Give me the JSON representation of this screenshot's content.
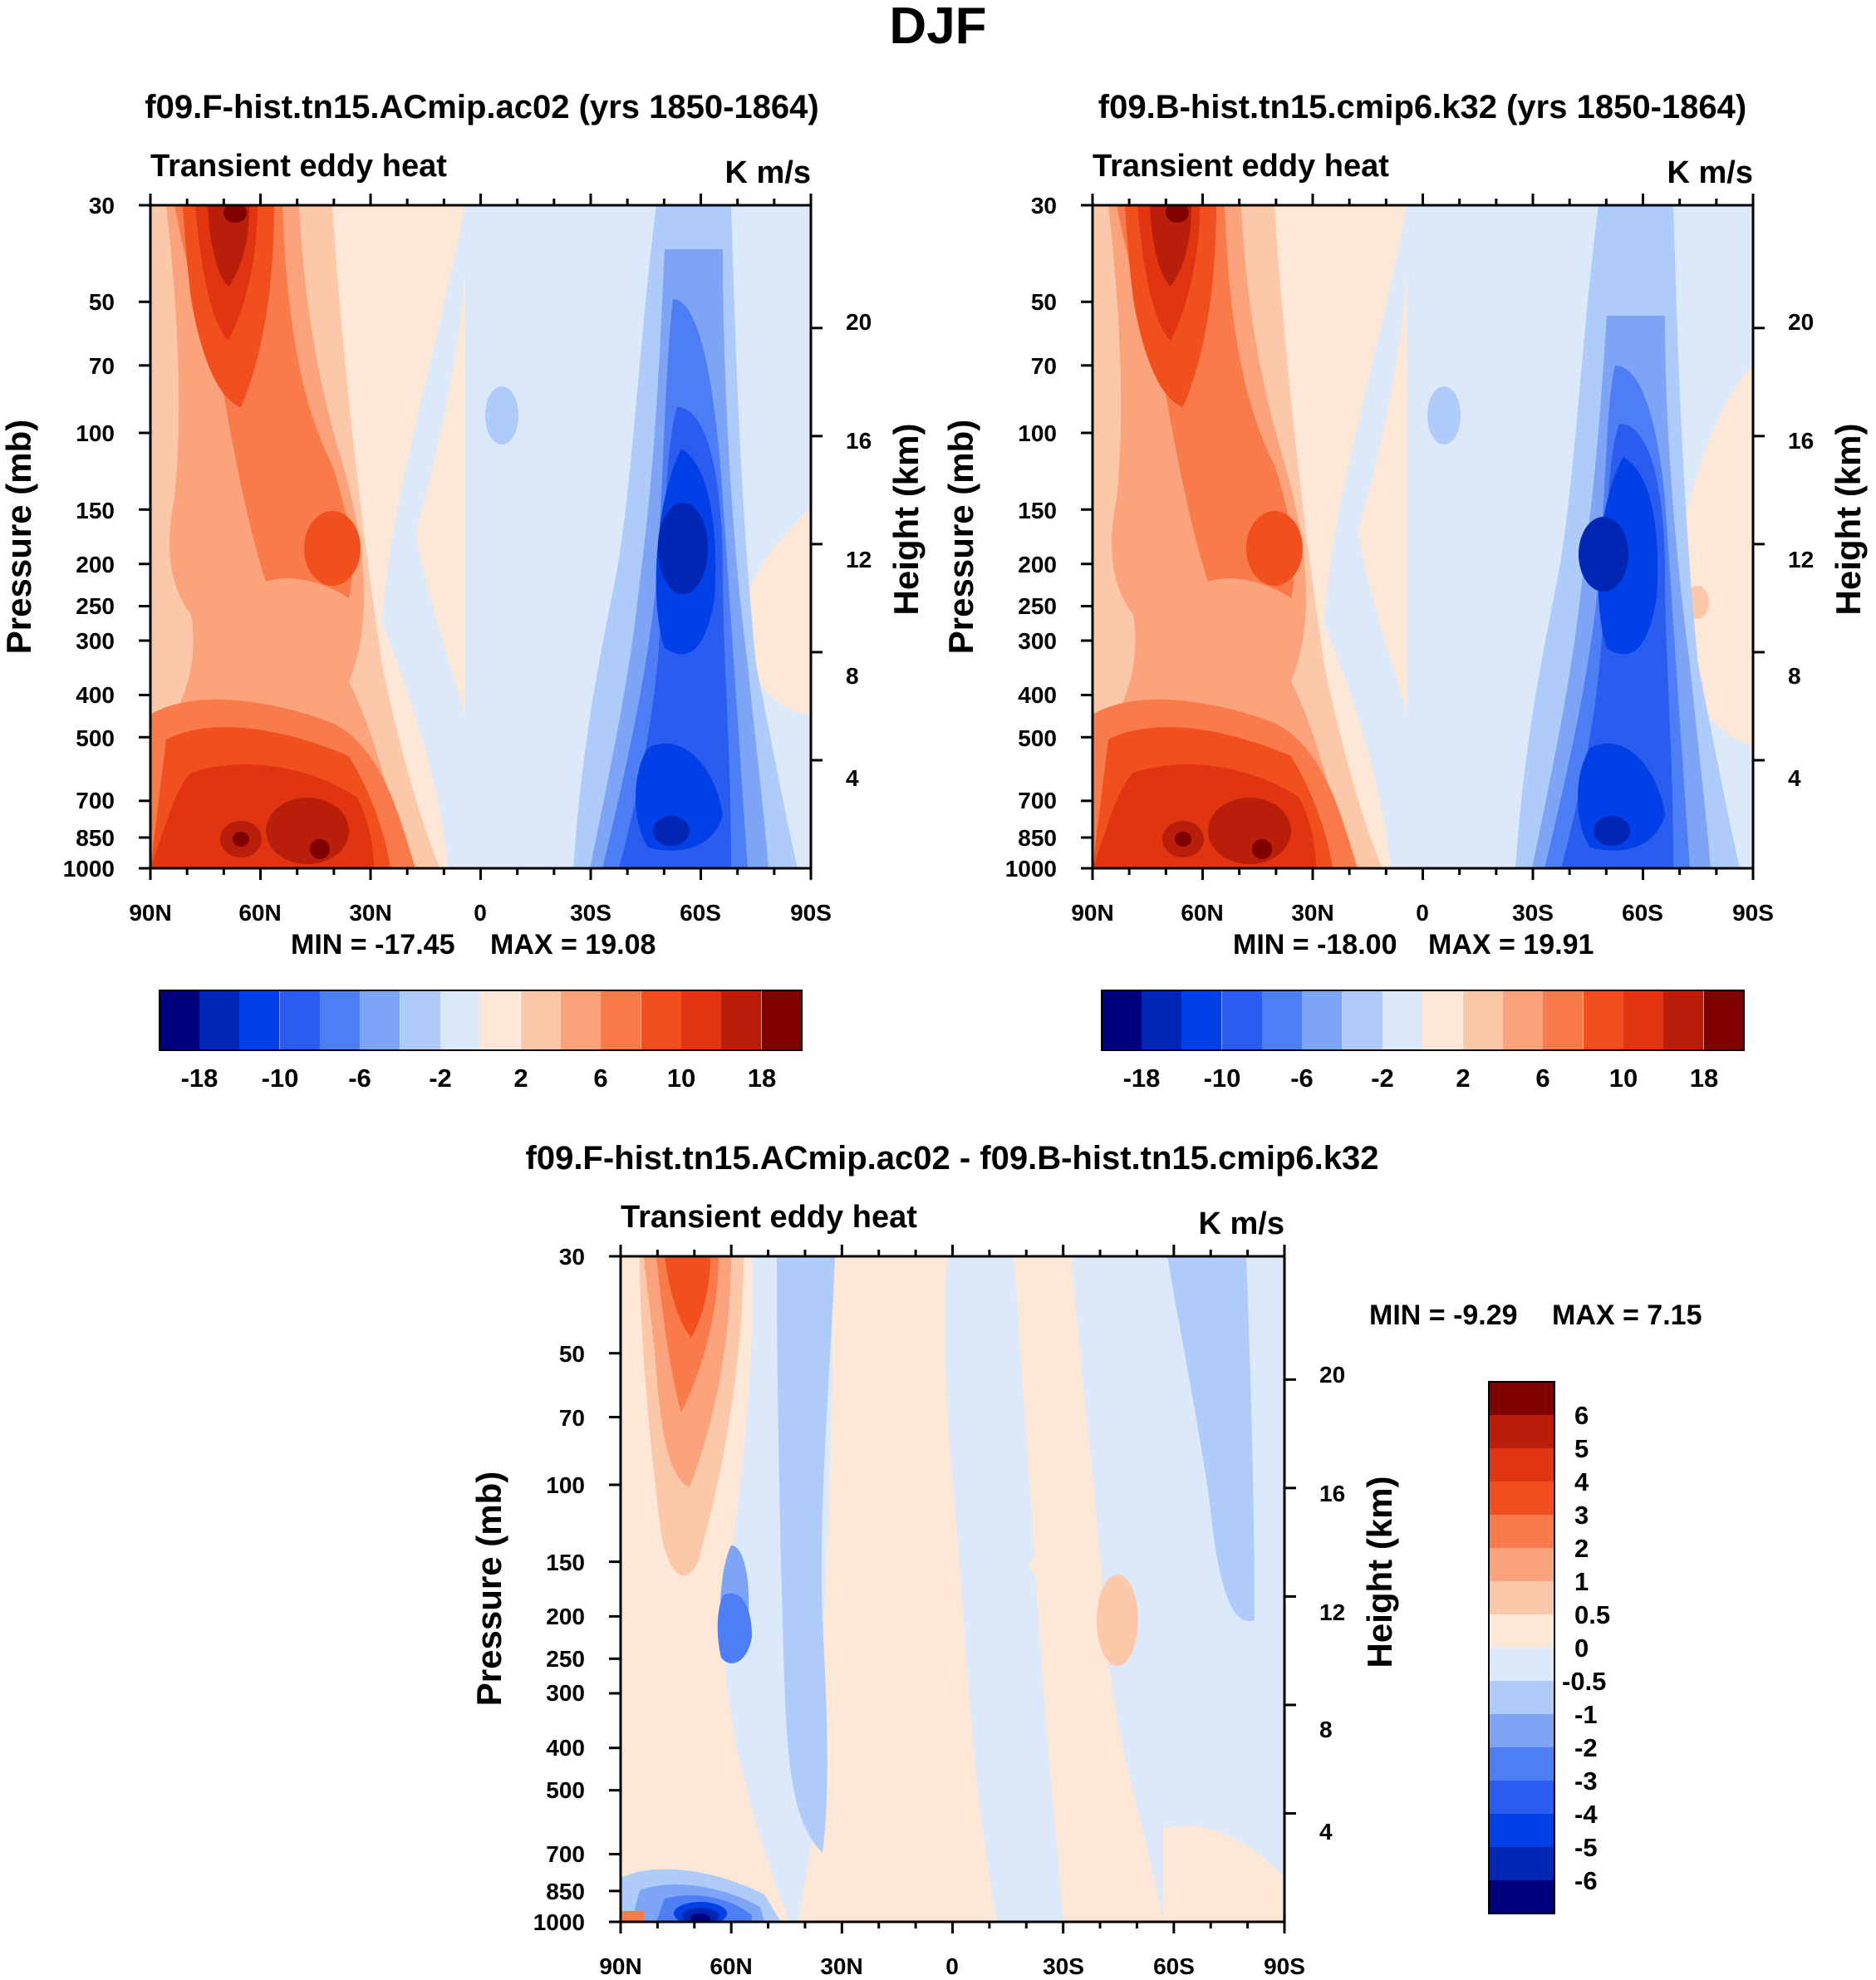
{
  "figure": {
    "title": "DJF"
  },
  "chart_data": [
    {
      "type": "heatmap",
      "title": "f09.F-hist.tn15.ACmip.ac02 (yrs 1850-1864)",
      "subtitle_left": "Transient eddy heat",
      "subtitle_right": "K m/s",
      "xlabel": "",
      "ylabel": "Pressure (mb)",
      "ylabel_right": "Height (km)",
      "x_ticks": [
        "90N",
        "60N",
        "30N",
        "0",
        "30S",
        "60S",
        "90S"
      ],
      "y_ticks": [
        "30",
        "50",
        "70",
        "100",
        "150",
        "200",
        "250",
        "300",
        "400",
        "500",
        "700",
        "850",
        "1000"
      ],
      "y_ticks_right": [
        "20",
        "16",
        "12",
        "8",
        "4"
      ],
      "min_label": "MIN = -17.45",
      "max_label": "MAX =  19.08",
      "min": -17.45,
      "max": 19.08,
      "colorbar_labels": [
        "-18",
        "-10",
        "-6",
        "-2",
        "2",
        "6",
        "10",
        "18"
      ]
    },
    {
      "type": "heatmap",
      "title": "f09.B-hist.tn15.cmip6.k32 (yrs 1850-1864)",
      "subtitle_left": "Transient eddy heat",
      "subtitle_right": "K m/s",
      "xlabel": "",
      "ylabel": "Pressure (mb)",
      "ylabel_right": "Height (km)",
      "x_ticks": [
        "90N",
        "60N",
        "30N",
        "0",
        "30S",
        "60S",
        "90S"
      ],
      "y_ticks": [
        "30",
        "50",
        "70",
        "100",
        "150",
        "200",
        "250",
        "300",
        "400",
        "500",
        "700",
        "850",
        "1000"
      ],
      "y_ticks_right": [
        "20",
        "16",
        "12",
        "8",
        "4"
      ],
      "min_label": "MIN = -18.00",
      "max_label": "MAX =  19.91",
      "min": -18.0,
      "max": 19.91,
      "colorbar_labels": [
        "-18",
        "-10",
        "-6",
        "-2",
        "2",
        "6",
        "10",
        "18"
      ]
    },
    {
      "type": "heatmap",
      "title": "f09.F-hist.tn15.ACmip.ac02 - f09.B-hist.tn15.cmip6.k32",
      "subtitle_left": "Transient eddy heat",
      "subtitle_right": "K m/s",
      "xlabel": "",
      "ylabel": "Pressure (mb)",
      "ylabel_right": "Height (km)",
      "x_ticks": [
        "90N",
        "60N",
        "30N",
        "0",
        "30S",
        "60S",
        "90S"
      ],
      "y_ticks": [
        "30",
        "50",
        "70",
        "100",
        "150",
        "200",
        "250",
        "300",
        "400",
        "500",
        "700",
        "850",
        "1000"
      ],
      "y_ticks_right": [
        "20",
        "16",
        "12",
        "8",
        "4"
      ],
      "min_label": "MIN =  -9.29",
      "max_label": "MAX =   7.15",
      "min": -9.29,
      "max": 7.15,
      "colorbar_labels": [
        "6",
        "5",
        "4",
        "3",
        "2",
        "1",
        "0.5",
        "0",
        "-0.5",
        "-1",
        "-2",
        "-3",
        "-4",
        "-5",
        "-6"
      ]
    }
  ],
  "colors": {
    "scale": [
      "#00007f",
      "#0026b3",
      "#0040e6",
      "#2a5cf0",
      "#4d7ef5",
      "#7ea4f5",
      "#aecbfa",
      "#dbe9fb",
      "#fde8d8",
      "#fcc8aa",
      "#fba37c",
      "#f97a4a",
      "#f24f1e",
      "#e03510",
      "#b81e0a",
      "#800000"
    ]
  }
}
